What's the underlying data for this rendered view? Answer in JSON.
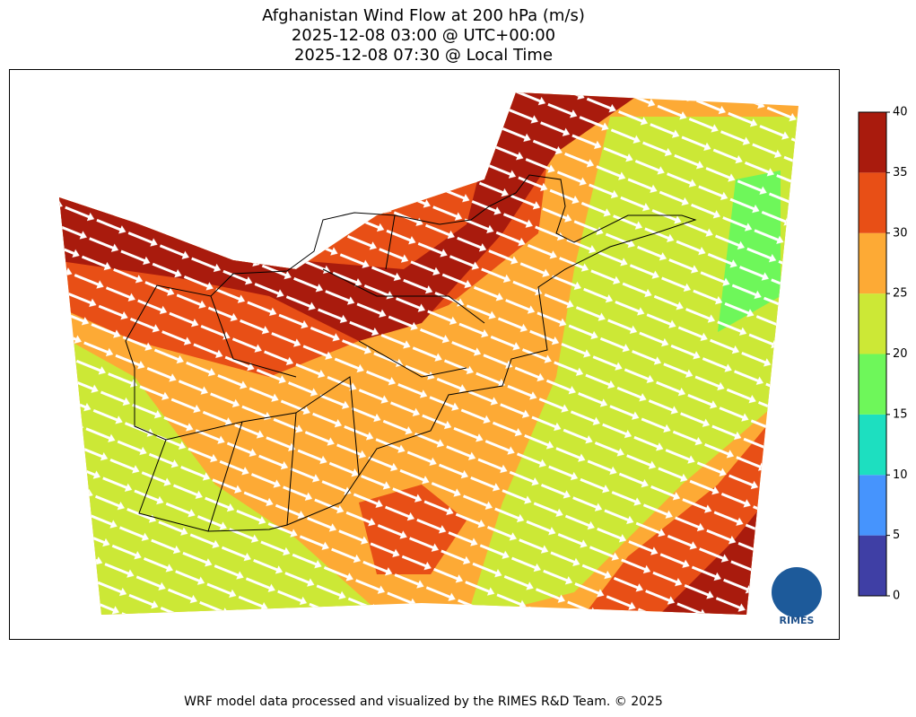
{
  "title": [
    "Afghanistan Wind Flow at 200 hPa (m/s)",
    "2025-12-08 03:00 @ UTC+00:00",
    "2025-12-08 07:30 @ Local Time"
  ],
  "colorbar": {
    "lim": [
      0,
      40
    ],
    "ticks": [
      0,
      5,
      10,
      15,
      20,
      25,
      30,
      35,
      40
    ],
    "colors": [
      "#3f3fa5",
      "#4694fd",
      "#1ddfc0",
      "#6ef75a",
      "#cce836",
      "#fdaa35",
      "#e84f16",
      "#a91b0d"
    ]
  },
  "logo": "RIMES",
  "footer": "WRF model data processed and visualized by the RIMES R&D Team. © 2025"
}
